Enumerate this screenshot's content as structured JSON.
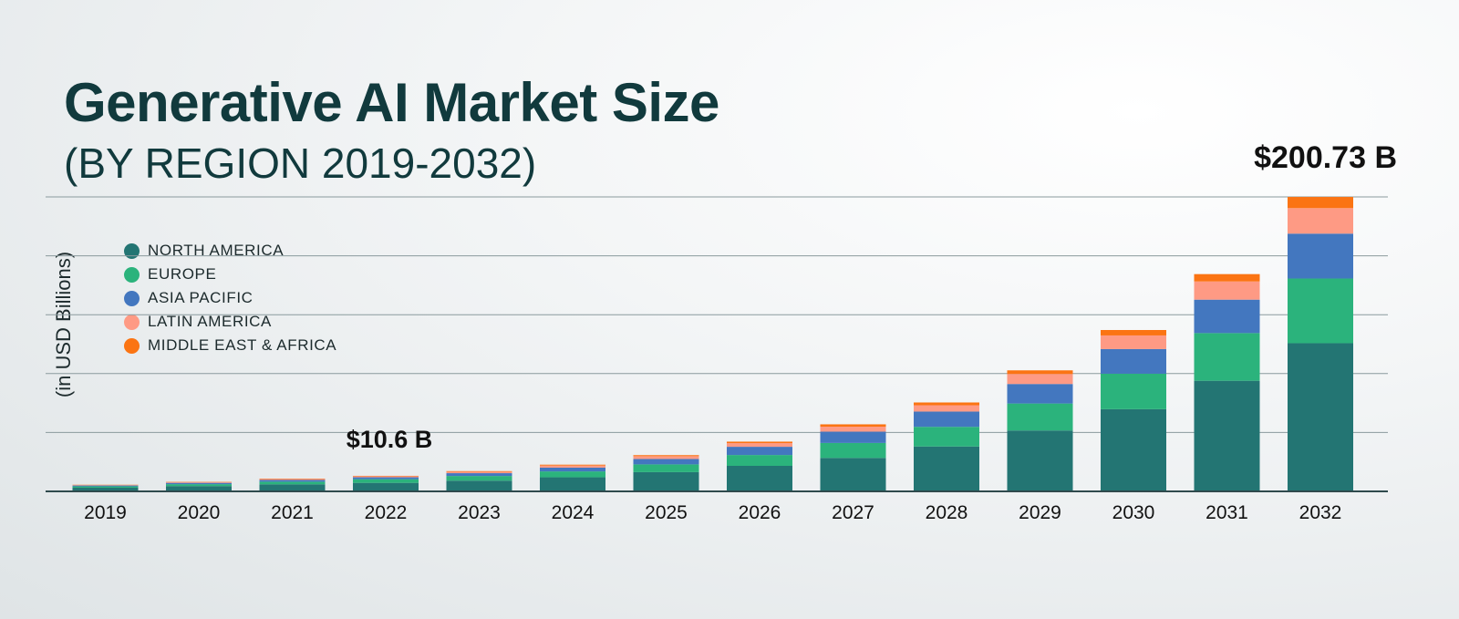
{
  "chart_data": {
    "type": "bar",
    "stacked": true,
    "title": "Generative AI Market Size",
    "subtitle": "(BY REGION 2019-2032)",
    "ylabel": "(in USD Billions)",
    "xlabel": "",
    "ylim": [
      0,
      200.73
    ],
    "grid": true,
    "legend_position": "top-left",
    "categories": [
      "2019",
      "2020",
      "2021",
      "2022",
      "2023",
      "2024",
      "2025",
      "2026",
      "2027",
      "2028",
      "2029",
      "2030",
      "2031",
      "2032"
    ],
    "series": [
      {
        "name": "NORTH AMERICA",
        "color": "#237573",
        "values": [
          2.5,
          3.6,
          4.8,
          5.8,
          7.3,
          9.6,
          13.1,
          17.4,
          22.8,
          30.6,
          41.5,
          56.0,
          75.4,
          101.0
        ]
      },
      {
        "name": "EUROPE",
        "color": "#2bb37c",
        "values": [
          0.9,
          1.3,
          1.8,
          2.5,
          3.2,
          4.0,
          5.3,
          7.4,
          10.2,
          13.4,
          18.4,
          24.2,
          32.5,
          44.1
        ]
      },
      {
        "name": "ASIA PACIFIC",
        "color": "#4377bf",
        "values": [
          0.6,
          0.9,
          1.2,
          1.3,
          1.9,
          2.6,
          3.7,
          5.6,
          7.7,
          10.4,
          13.3,
          16.8,
          22.8,
          30.6
        ]
      },
      {
        "name": "LATIN AMERICA",
        "color": "#fe9a84",
        "values": [
          0.3,
          0.5,
          0.6,
          0.7,
          1.0,
          1.4,
          1.9,
          2.5,
          3.4,
          4.3,
          6.8,
          9.3,
          12.4,
          17.4
        ]
      },
      {
        "name": "MIDDLE EAST & AFRICA",
        "color": "#fb7413",
        "values": [
          0.2,
          0.2,
          0.3,
          0.3,
          0.4,
          0.6,
          0.7,
          1.0,
          1.6,
          1.9,
          2.5,
          3.7,
          5.0,
          7.6
        ]
      }
    ],
    "annotations": [
      {
        "category": "2022",
        "text": "$10.6 B"
      },
      {
        "category": "2032",
        "text": "$200.73 B"
      }
    ]
  },
  "colors": {
    "title": "#113a3d",
    "grid": "#8a9a9d",
    "axis": "#2f4a4d"
  }
}
